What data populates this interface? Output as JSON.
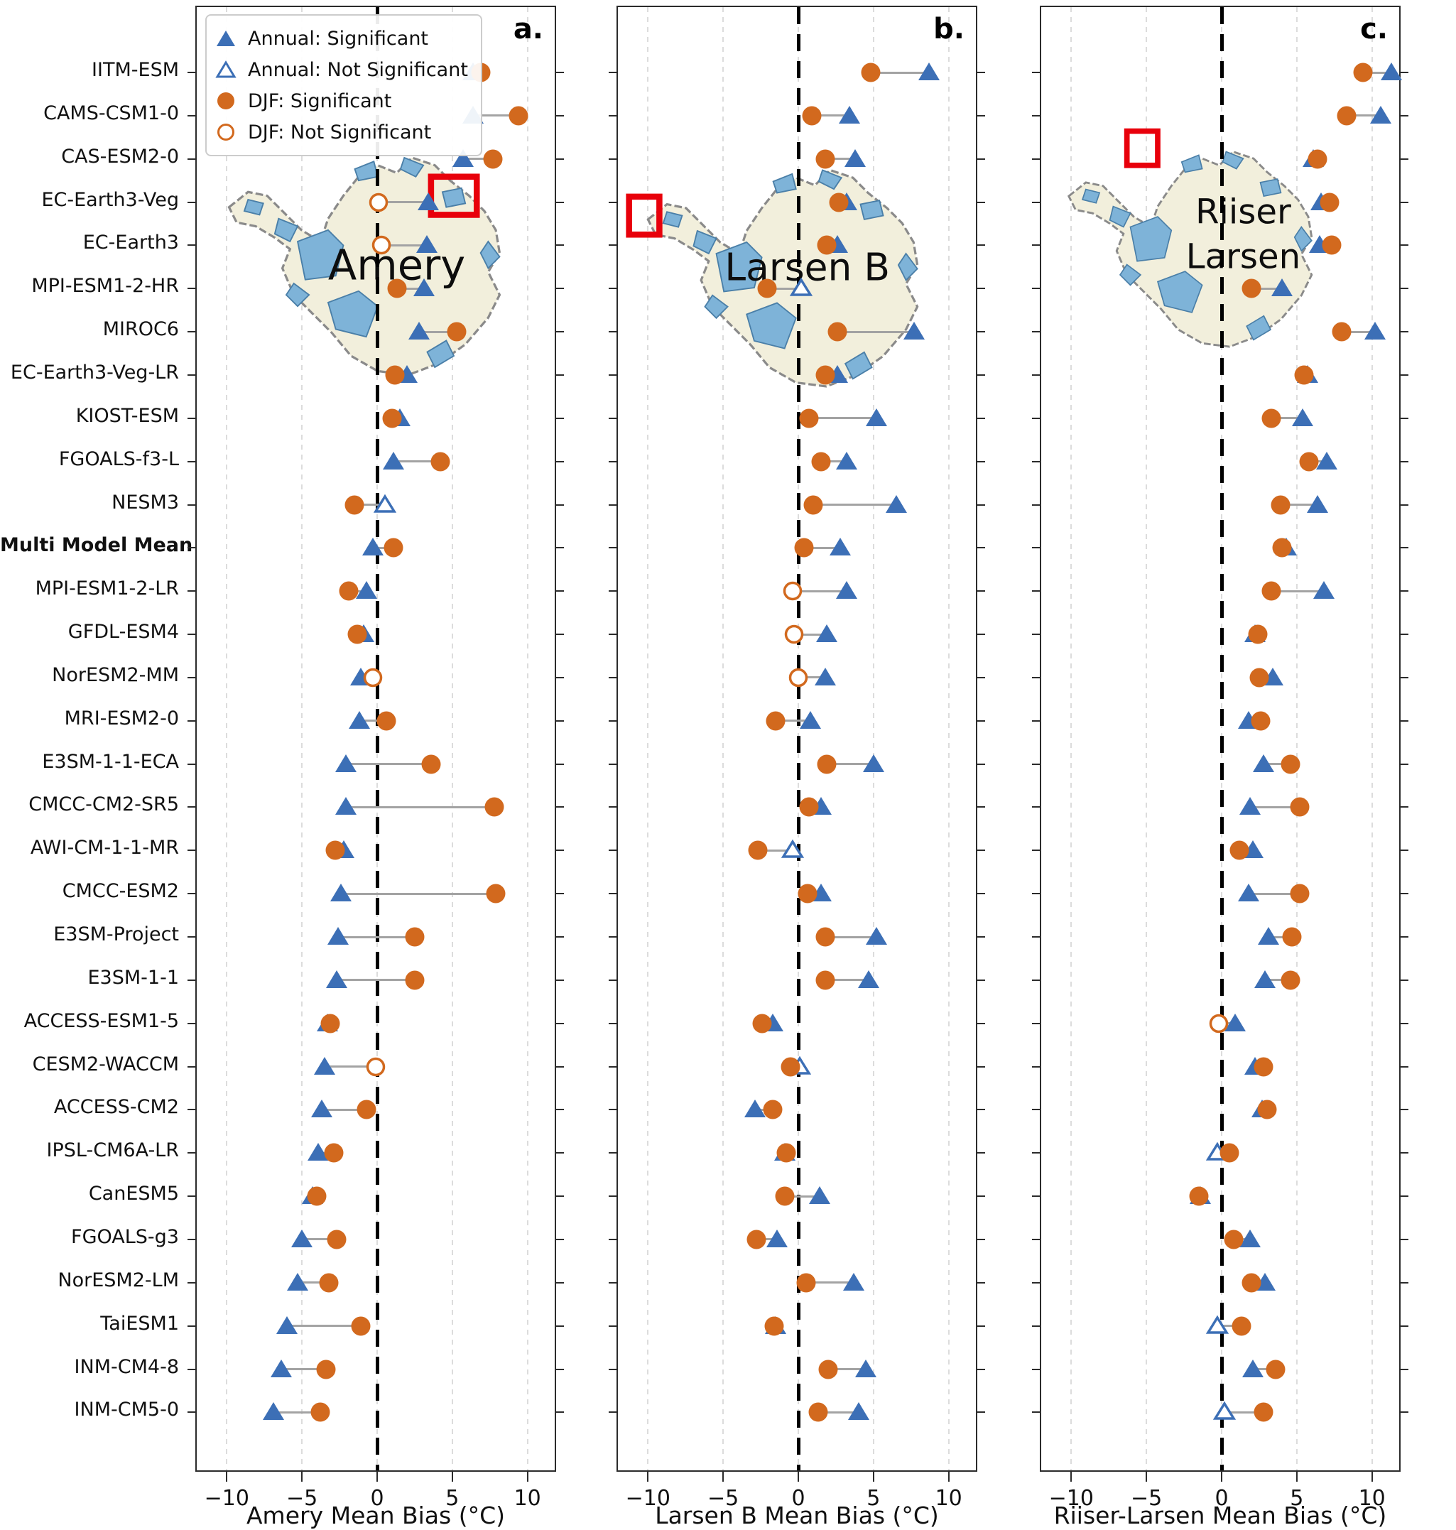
{
  "figure": {
    "legend": {
      "items": [
        {
          "label": "Annual: Significant",
          "marker": "triangle-filled-icon"
        },
        {
          "label": "Annual: Not Significant",
          "marker": "triangle-open-icon"
        },
        {
          "label": "DJF: Significant",
          "marker": "circle-filled-icon"
        },
        {
          "label": "DJF: Not Significant",
          "marker": "circle-open-icon"
        }
      ]
    },
    "panels": [
      {
        "letter": "a.",
        "map_label_lines": [
          "Amery"
        ]
      },
      {
        "letter": "b.",
        "map_label_lines": [
          "Larsen B"
        ]
      },
      {
        "letter": "c.",
        "map_label_lines": [
          "Riiser",
          "Larsen"
        ]
      }
    ]
  },
  "chart_data": {
    "type": "scatter",
    "subtype": "horizontal-dot-plot-with-connectors",
    "title": "",
    "grid": true,
    "legend_position": "upper-left-panel-a",
    "xlim": [
      -12,
      12
    ],
    "xticks": [
      -10,
      -5,
      0,
      5,
      10
    ],
    "xtick_labels": [
      "−10",
      "−5",
      "0",
      "5",
      "10"
    ],
    "zero_reference_line": 0,
    "models": [
      "IITM-ESM",
      "CAMS-CSM1-0",
      "CAS-ESM2-0",
      "EC-Earth3-Veg",
      "EC-Earth3",
      "MPI-ESM1-2-HR",
      "MIROC6",
      "EC-Earth3-Veg-LR",
      "KIOST-ESM",
      "FGOALS-f3-L",
      "NESM3",
      "Multi Model Mean",
      "MPI-ESM1-2-LR",
      "GFDL-ESM4",
      "NorESM2-MM",
      "MRI-ESM2-0",
      "E3SM-1-1-ECA",
      "CMCC-CM2-SR5",
      "AWI-CM-1-1-MR",
      "CMCC-ESM2",
      "E3SM-Project",
      "E3SM-1-1",
      "ACCESS-ESM1-5",
      "CESM2-WACCM",
      "ACCESS-CM2",
      "IPSL-CM6A-LR",
      "CanESM5",
      "FGOALS-g3",
      "NorESM2-LM",
      "TaiESM1",
      "INM-CM4-8",
      "INM-CM5-0"
    ],
    "bold_model": "Multi Model Mean",
    "series_meta": [
      {
        "name": "Annual",
        "marker": "triangle",
        "color": "#3c6fb6"
      },
      {
        "name": "DJF",
        "marker": "circle",
        "color": "#d2691e"
      }
    ],
    "panels": [
      {
        "name": "Amery",
        "xlabel": "Amery Mean Bias (°C)",
        "annual": [
          6.4,
          6.4,
          5.7,
          3.4,
          3.3,
          3.1,
          2.8,
          2.0,
          1.5,
          1.1,
          0.5,
          -0.3,
          -0.7,
          -0.9,
          -1.1,
          -1.2,
          -2.1,
          -2.1,
          -2.2,
          -2.4,
          -2.6,
          -2.7,
          -3.3,
          -3.5,
          -3.7,
          -3.9,
          -4.3,
          -5.0,
          -5.3,
          -6.0,
          -6.4,
          -6.9
        ],
        "annual_significant": [
          true,
          true,
          true,
          true,
          true,
          true,
          true,
          true,
          true,
          true,
          false,
          true,
          true,
          true,
          true,
          true,
          true,
          true,
          true,
          true,
          true,
          true,
          true,
          true,
          true,
          true,
          true,
          true,
          true,
          true,
          true,
          true
        ],
        "djf": [
          6.9,
          9.4,
          7.7,
          0.1,
          0.3,
          1.3,
          5.3,
          1.2,
          1.0,
          4.2,
          -1.5,
          1.1,
          -1.9,
          -1.3,
          -0.3,
          0.6,
          3.6,
          7.8,
          -2.8,
          7.9,
          2.5,
          2.5,
          -3.1,
          -0.1,
          -0.7,
          -2.9,
          -4.0,
          -2.7,
          -3.2,
          -1.1,
          -3.4,
          -3.8
        ],
        "djf_significant": [
          true,
          true,
          true,
          false,
          false,
          true,
          true,
          true,
          true,
          true,
          true,
          true,
          true,
          true,
          false,
          true,
          true,
          true,
          true,
          true,
          true,
          true,
          true,
          false,
          true,
          true,
          true,
          true,
          true,
          true,
          true,
          true
        ]
      },
      {
        "name": "Larsen B",
        "xlabel": "Larsen B Mean Bias (°C)",
        "annual": [
          8.7,
          3.4,
          3.8,
          3.2,
          2.6,
          0.2,
          7.7,
          2.6,
          5.2,
          3.2,
          6.5,
          2.8,
          3.2,
          1.9,
          1.8,
          0.8,
          5.0,
          1.5,
          -0.4,
          1.5,
          5.2,
          4.7,
          -1.7,
          0.1,
          -2.9,
          -0.9,
          1.4,
          -1.4,
          3.7,
          -1.5,
          4.5,
          4.0
        ],
        "annual_significant": [
          true,
          true,
          true,
          true,
          true,
          false,
          true,
          true,
          true,
          true,
          true,
          true,
          true,
          true,
          true,
          true,
          true,
          true,
          false,
          true,
          true,
          true,
          true,
          false,
          true,
          true,
          true,
          true,
          true,
          true,
          true,
          true
        ],
        "djf": [
          4.8,
          0.9,
          1.8,
          2.7,
          1.9,
          -2.1,
          2.6,
          1.8,
          0.7,
          1.5,
          1.0,
          0.4,
          -0.4,
          -0.3,
          0.0,
          -1.5,
          1.9,
          0.7,
          -2.7,
          0.6,
          1.8,
          1.8,
          -2.4,
          -0.5,
          -1.7,
          -0.8,
          -0.9,
          -2.8,
          0.5,
          -1.6,
          2.0,
          1.3
        ],
        "djf_significant": [
          true,
          true,
          true,
          true,
          true,
          true,
          true,
          true,
          true,
          true,
          true,
          true,
          false,
          false,
          false,
          true,
          true,
          true,
          true,
          true,
          true,
          true,
          true,
          true,
          true,
          true,
          true,
          true,
          true,
          true,
          true,
          true
        ]
      },
      {
        "name": "Riiser-Larsen",
        "xlabel": "Riiser-Larsen Mean Bias (°C)",
        "annual": [
          11.3,
          10.6,
          6.1,
          6.6,
          6.5,
          4.0,
          10.2,
          5.7,
          5.4,
          7.0,
          6.4,
          4.3,
          6.8,
          2.2,
          3.4,
          1.8,
          2.8,
          1.9,
          2.1,
          1.8,
          3.1,
          2.9,
          0.9,
          2.2,
          2.7,
          -0.3,
          -1.4,
          1.9,
          2.9,
          -0.3,
          2.1,
          0.2
        ],
        "annual_significant": [
          true,
          true,
          true,
          true,
          true,
          true,
          true,
          true,
          true,
          true,
          true,
          true,
          true,
          true,
          true,
          true,
          true,
          true,
          true,
          true,
          true,
          true,
          true,
          true,
          true,
          false,
          true,
          true,
          true,
          false,
          true,
          false
        ],
        "djf": [
          9.4,
          8.3,
          6.4,
          7.2,
          7.3,
          2.0,
          8.0,
          5.5,
          3.3,
          5.8,
          3.9,
          4.0,
          3.3,
          2.4,
          2.5,
          2.6,
          4.6,
          5.2,
          1.2,
          5.2,
          4.7,
          4.6,
          -0.2,
          2.8,
          3.0,
          0.5,
          -1.5,
          0.8,
          2.0,
          1.3,
          3.6,
          2.8
        ],
        "djf_significant": [
          true,
          true,
          true,
          true,
          true,
          true,
          true,
          true,
          true,
          true,
          true,
          true,
          true,
          true,
          true,
          true,
          true,
          true,
          true,
          true,
          true,
          true,
          false,
          true,
          true,
          true,
          true,
          true,
          true,
          true,
          true,
          true
        ]
      }
    ],
    "colors": {
      "annual": "#3c6fb6",
      "djf": "#d2691e",
      "connector": "#a3a3a3",
      "zero_line": "#000000",
      "grid": "#dcdcdc",
      "map_land": "#f2efdc",
      "map_shelf": "#7eb3d8",
      "map_outline": "#8a8a8a",
      "highlight_box": "#e8000b"
    }
  }
}
